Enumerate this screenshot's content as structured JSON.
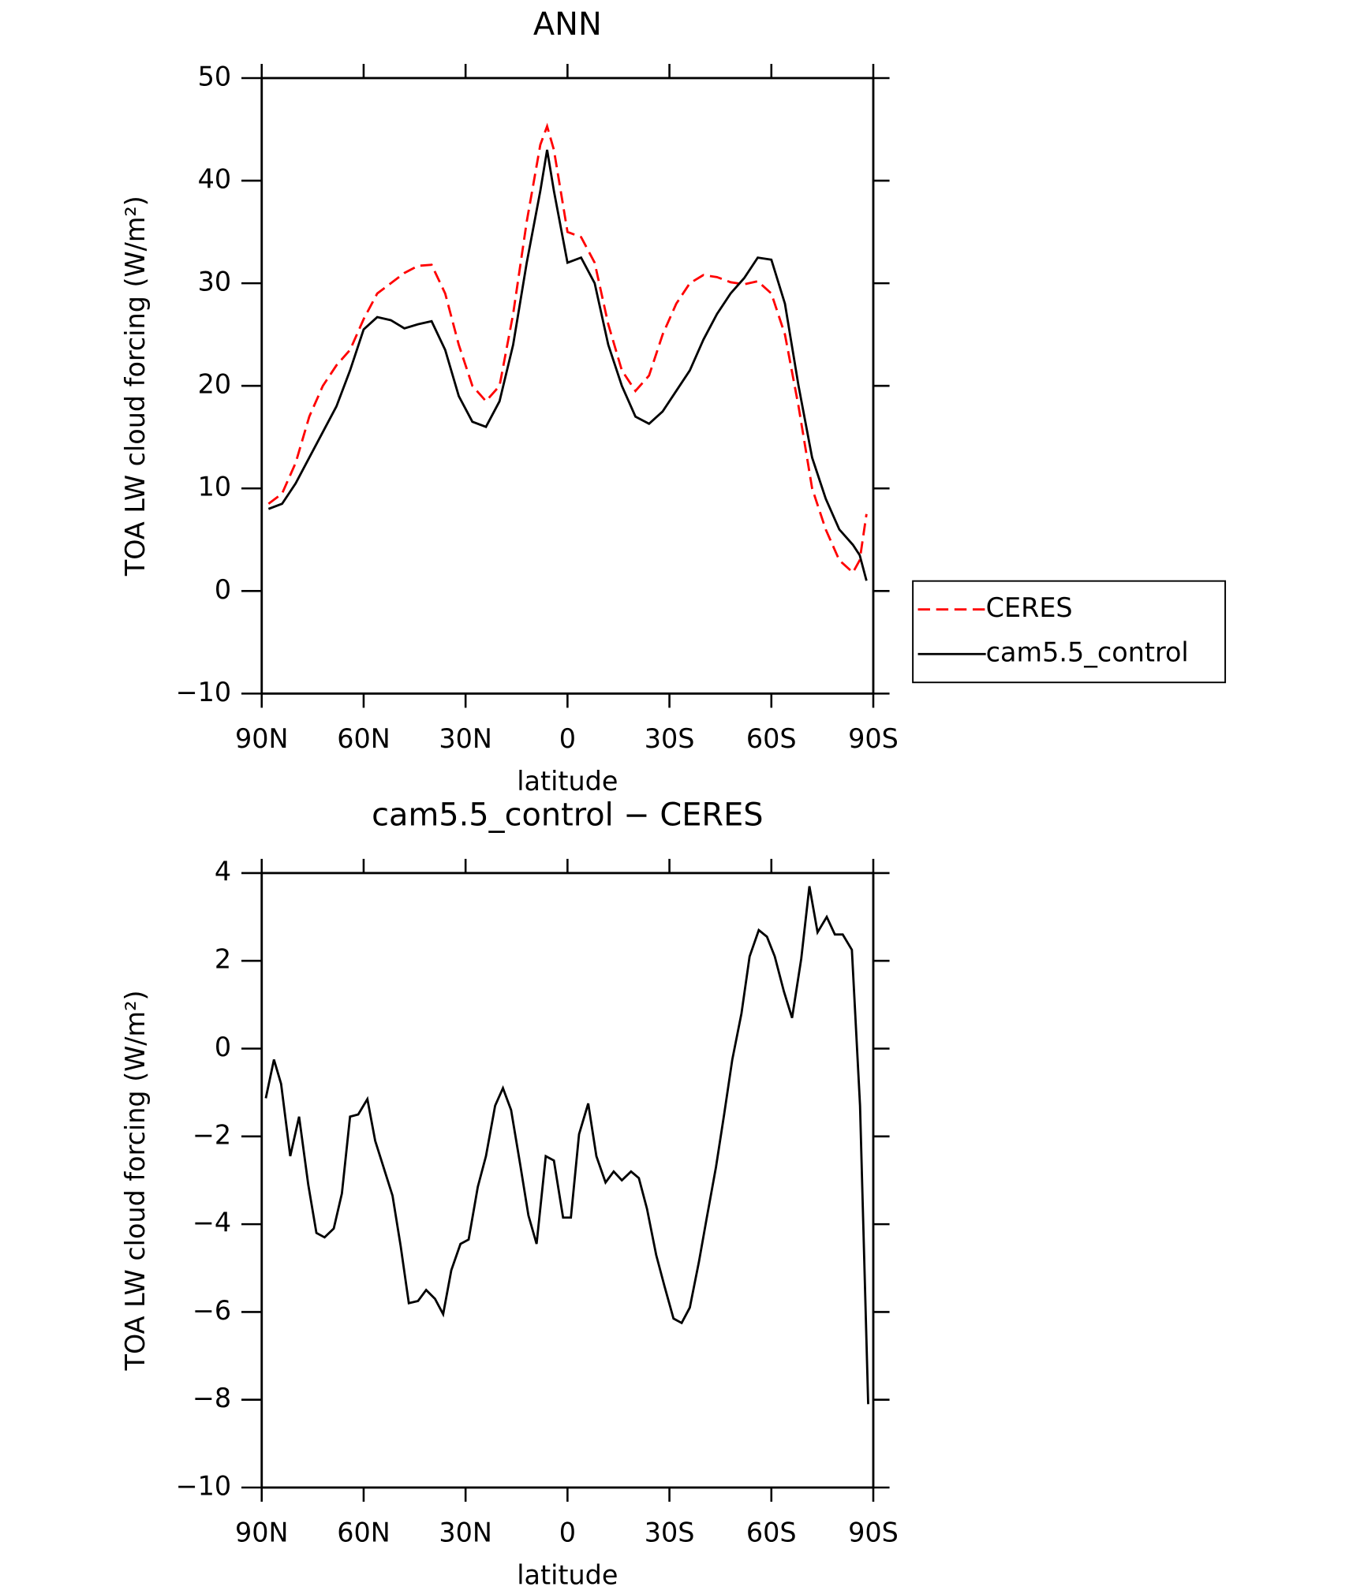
{
  "chart_data": [
    {
      "type": "line",
      "title": "ANN",
      "xlabel": "latitude",
      "ylabel": "TOA LW cloud forcing (W/m²)",
      "xlim": [
        90,
        -90
      ],
      "xticks": [
        {
          "value": 90,
          "label": "90N"
        },
        {
          "value": 60,
          "label": "60N"
        },
        {
          "value": 30,
          "label": "30N"
        },
        0,
        {
          "value": -30,
          "label": "30S"
        },
        {
          "value": -60,
          "label": "60S"
        },
        {
          "value": -90,
          "label": "90S"
        }
      ],
      "ylim": [
        -10,
        50
      ],
      "yticks": [
        {
          "value": -10,
          "label": "−10"
        },
        0,
        10,
        20,
        30,
        40,
        50
      ],
      "legend": "right",
      "x": [
        88,
        84,
        80,
        76,
        72,
        68,
        64,
        60,
        56,
        52,
        48,
        44,
        40,
        36,
        32,
        28,
        24,
        20,
        16,
        12,
        8,
        6,
        4,
        0,
        -4,
        -8,
        -12,
        -16,
        -20,
        -24,
        -28,
        -32,
        -36,
        -40,
        -44,
        -48,
        -52,
        -56,
        -60,
        -64,
        -68,
        -72,
        -76,
        -80,
        -84,
        -86,
        -88
      ],
      "series": [
        {
          "name": "CERES",
          "color": "#ff0000",
          "dashed": true,
          "values": [
            8.5,
            9.5,
            12.5,
            17,
            20,
            22,
            23.5,
            26.5,
            29,
            30,
            31,
            31.7,
            31.8,
            29,
            24,
            20,
            18.5,
            20,
            27,
            36,
            43.5,
            45.3,
            43,
            35,
            34.5,
            32,
            26,
            21.5,
            19.5,
            21,
            25,
            28,
            30,
            30.8,
            30.6,
            30.1,
            29.9,
            30.2,
            29,
            25,
            18,
            10,
            6,
            3,
            1.8,
            3,
            7.5
          ]
        },
        {
          "name": "cam5.5_control",
          "color": "#000000",
          "dashed": false,
          "values": [
            8,
            8.5,
            10.5,
            13,
            15.5,
            18,
            21.5,
            25.5,
            26.7,
            26.4,
            25.6,
            26,
            26.3,
            23.5,
            19,
            16.5,
            16,
            18.5,
            24,
            32,
            39,
            43,
            39,
            32,
            32.5,
            30,
            24,
            20,
            17,
            16.3,
            17.5,
            19.5,
            21.5,
            24.5,
            27,
            29,
            30.5,
            32.5,
            32.3,
            28,
            20,
            13,
            9,
            6,
            4.5,
            3.5,
            1
          ]
        }
      ]
    },
    {
      "type": "line",
      "title": "cam5.5_control − CERES",
      "xlabel": "latitude",
      "ylabel": "TOA LW cloud forcing (W/m²)",
      "xlim": [
        90,
        -90
      ],
      "xticks": [
        {
          "value": 90,
          "label": "90N"
        },
        {
          "value": 60,
          "label": "60N"
        },
        {
          "value": 30,
          "label": "30N"
        },
        0,
        {
          "value": -30,
          "label": "30S"
        },
        {
          "value": -60,
          "label": "60S"
        },
        {
          "value": -90,
          "label": "90S"
        }
      ],
      "ylim": [
        -10,
        4
      ],
      "yticks": [
        {
          "value": -10,
          "label": "−10"
        },
        {
          "value": -8,
          "label": "−8"
        },
        {
          "value": -6,
          "label": "−6"
        },
        {
          "value": -4,
          "label": "−4"
        },
        {
          "value": -2,
          "label": "−2"
        },
        0,
        2,
        4
      ],
      "x": [
        88.8,
        86.4,
        84.3,
        81.6,
        79,
        76.3,
        73.9,
        71.5,
        68.8,
        66.4,
        64,
        61.6,
        58.9,
        56.6,
        51.5,
        49.1,
        46.7,
        44,
        41.6,
        39,
        36.6,
        34.2,
        31.5,
        29.1,
        26.4,
        24,
        21.3,
        19,
        16.6,
        13.9,
        11.5,
        9.1,
        6.4,
        4,
        1.3,
        -1,
        -3.4,
        -6.1,
        -8.5,
        -11.2,
        -13.6,
        -16,
        -18.7,
        -21,
        -23.4,
        -26.1,
        -28.5,
        -31.2,
        -33.6,
        -36,
        -38.7,
        -41,
        -43.7,
        -46.1,
        -48.5,
        -51.2,
        -53.6,
        -56.3,
        -58.7,
        -61,
        -63.7,
        -66.1,
        -68.8,
        -71.2,
        -73.6,
        -76.3,
        -78.7,
        -81,
        -83.7,
        -86.1,
        -88.5
      ],
      "series": [
        {
          "color": "#000000",
          "dashed": false,
          "values": [
            -1.13,
            -0.25,
            -0.8,
            -2.45,
            -1.55,
            -3.1,
            -4.2,
            -4.3,
            -4.1,
            -3.3,
            -1.55,
            -1.5,
            -1.15,
            -2.1,
            -3.35,
            -4.5,
            -5.8,
            -5.75,
            -5.5,
            -5.7,
            -6.05,
            -5.05,
            -4.45,
            -4.35,
            -3.15,
            -2.45,
            -1.3,
            -0.9,
            -1.4,
            -2.65,
            -3.8,
            -4.45,
            -2.45,
            -2.55,
            -3.85,
            -3.85,
            -1.95,
            -1.25,
            -2.45,
            -3.05,
            -2.8,
            -3,
            -2.8,
            -2.95,
            -3.65,
            -4.7,
            -5.4,
            -6.15,
            -6.25,
            -5.9,
            -4.85,
            -3.85,
            -2.7,
            -1.5,
            -0.25,
            0.8,
            2.1,
            2.7,
            2.55,
            2.1,
            1.3,
            0.7,
            2.05,
            3.7,
            2.65,
            3,
            2.6,
            2.6,
            2.25,
            -1.3,
            -8.1
          ]
        }
      ]
    }
  ]
}
